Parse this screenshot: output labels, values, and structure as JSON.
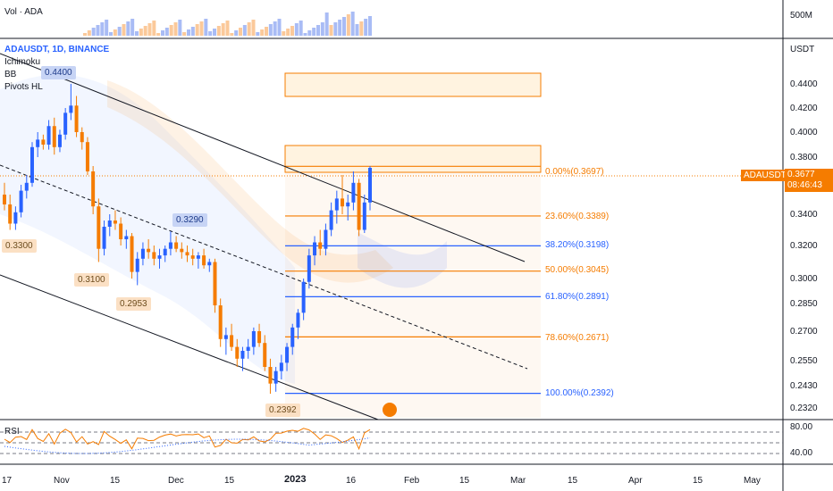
{
  "header": {
    "symbol_line": "ADAUSDT, 1D, BINANCE",
    "vol_label": "Vol · ADA",
    "indicators": [
      "Ichimoku",
      "BB",
      "Pivots HL"
    ],
    "rsi_label": "RSI",
    "currency": "USDT",
    "vol_scale": "500M"
  },
  "price_tag": {
    "symbol": "ADAUSDT",
    "price": "0.3677",
    "time": "08:46:43"
  },
  "colors": {
    "up": "#2962ff",
    "down": "#f57c00",
    "fib_orange": "#f57c00",
    "fib_blue": "#2962ff"
  },
  "chart_data": {
    "type": "candlestick",
    "y_ticks": [
      "0.4400",
      "0.4200",
      "0.4000",
      "0.3800",
      "0.3600",
      "0.3400",
      "0.3200",
      "0.3000",
      "0.2850",
      "0.2700",
      "0.2550",
      "0.2430",
      "0.2320"
    ],
    "x_ticks": [
      "17",
      "Nov",
      "15",
      "Dec",
      "15",
      "2023",
      "16",
      "Feb",
      "15",
      "Mar",
      "15",
      "Apr",
      "15",
      "May"
    ],
    "rsi_ticks": [
      "80.00",
      "40.00"
    ],
    "pivots": [
      {
        "label": "0.4400",
        "kind": "high"
      },
      {
        "label": "0.3300",
        "kind": "low"
      },
      {
        "label": "0.3100",
        "kind": "low"
      },
      {
        "label": "0.2953",
        "kind": "low"
      },
      {
        "label": "0.3290",
        "kind": "high"
      },
      {
        "label": "0.2392",
        "kind": "low"
      }
    ],
    "fib_levels": [
      {
        "label": "0.00%(0.3697)",
        "price": 0.3697,
        "color": "orange"
      },
      {
        "label": "23.60%(0.3389)",
        "price": 0.3389,
        "color": "orange"
      },
      {
        "label": "38.20%(0.3198)",
        "price": 0.3198,
        "color": "blue"
      },
      {
        "label": "50.00%(0.3045)",
        "price": 0.3045,
        "color": "orange"
      },
      {
        "label": "61.80%(0.2891)",
        "price": 0.2891,
        "color": "blue"
      },
      {
        "label": "78.60%(0.2671)",
        "price": 0.2671,
        "color": "orange"
      },
      {
        "label": "100.00%(0.2392)",
        "price": 0.2392,
        "color": "blue"
      }
    ],
    "candles": [
      [
        0.35,
        0.356,
        0.342,
        0.345
      ],
      [
        0.345,
        0.35,
        0.33,
        0.334
      ],
      [
        0.334,
        0.344,
        0.33,
        0.341
      ],
      [
        0.341,
        0.355,
        0.338,
        0.352
      ],
      [
        0.352,
        0.36,
        0.348,
        0.356
      ],
      [
        0.356,
        0.392,
        0.354,
        0.388
      ],
      [
        0.388,
        0.4,
        0.38,
        0.394
      ],
      [
        0.394,
        0.398,
        0.386,
        0.39
      ],
      [
        0.39,
        0.41,
        0.386,
        0.405
      ],
      [
        0.405,
        0.412,
        0.382,
        0.388
      ],
      [
        0.388,
        0.402,
        0.384,
        0.398
      ],
      [
        0.398,
        0.42,
        0.394,
        0.416
      ],
      [
        0.416,
        0.44,
        0.41,
        0.422
      ],
      [
        0.422,
        0.43,
        0.396,
        0.4
      ],
      [
        0.4,
        0.404,
        0.386,
        0.392
      ],
      [
        0.392,
        0.396,
        0.36,
        0.364
      ],
      [
        0.364,
        0.37,
        0.34,
        0.344
      ],
      [
        0.344,
        0.348,
        0.31,
        0.318
      ],
      [
        0.318,
        0.336,
        0.314,
        0.332
      ],
      [
        0.332,
        0.34,
        0.326,
        0.336
      ],
      [
        0.336,
        0.342,
        0.33,
        0.334
      ],
      [
        0.334,
        0.338,
        0.32,
        0.324
      ],
      [
        0.324,
        0.33,
        0.318,
        0.326
      ],
      [
        0.326,
        0.328,
        0.3,
        0.304
      ],
      [
        0.304,
        0.316,
        0.296,
        0.312
      ],
      [
        0.312,
        0.322,
        0.308,
        0.318
      ],
      [
        0.318,
        0.324,
        0.312,
        0.316
      ],
      [
        0.316,
        0.32,
        0.308,
        0.312
      ],
      [
        0.312,
        0.318,
        0.306,
        0.314
      ],
      [
        0.314,
        0.32,
        0.31,
        0.318
      ],
      [
        0.318,
        0.329,
        0.314,
        0.322
      ],
      [
        0.322,
        0.326,
        0.316,
        0.318
      ],
      [
        0.318,
        0.322,
        0.312,
        0.316
      ],
      [
        0.316,
        0.32,
        0.31,
        0.314
      ],
      [
        0.314,
        0.318,
        0.308,
        0.312
      ],
      [
        0.312,
        0.316,
        0.306,
        0.314
      ],
      [
        0.314,
        0.318,
        0.306,
        0.308
      ],
      [
        0.308,
        0.312,
        0.304,
        0.31
      ],
      [
        0.31,
        0.312,
        0.28,
        0.284
      ],
      [
        0.284,
        0.288,
        0.262,
        0.266
      ],
      [
        0.266,
        0.272,
        0.258,
        0.268
      ],
      [
        0.268,
        0.274,
        0.26,
        0.262
      ],
      [
        0.262,
        0.266,
        0.252,
        0.256
      ],
      [
        0.256,
        0.262,
        0.25,
        0.26
      ],
      [
        0.26,
        0.266,
        0.256,
        0.262
      ],
      [
        0.262,
        0.272,
        0.258,
        0.27
      ],
      [
        0.27,
        0.274,
        0.262,
        0.264
      ],
      [
        0.264,
        0.268,
        0.25,
        0.252
      ],
      [
        0.252,
        0.256,
        0.239,
        0.244
      ],
      [
        0.244,
        0.252,
        0.24,
        0.25
      ],
      [
        0.25,
        0.258,
        0.246,
        0.254
      ],
      [
        0.254,
        0.264,
        0.25,
        0.262
      ],
      [
        0.262,
        0.274,
        0.258,
        0.272
      ],
      [
        0.272,
        0.282,
        0.266,
        0.28
      ],
      [
        0.28,
        0.3,
        0.276,
        0.298
      ],
      [
        0.298,
        0.318,
        0.294,
        0.314
      ],
      [
        0.314,
        0.326,
        0.308,
        0.322
      ],
      [
        0.322,
        0.33,
        0.314,
        0.318
      ],
      [
        0.318,
        0.334,
        0.314,
        0.33
      ],
      [
        0.33,
        0.346,
        0.326,
        0.342
      ],
      [
        0.342,
        0.352,
        0.334,
        0.348
      ],
      [
        0.348,
        0.36,
        0.34,
        0.344
      ],
      [
        0.344,
        0.35,
        0.336,
        0.346
      ],
      [
        0.346,
        0.364,
        0.342,
        0.356
      ],
      [
        0.356,
        0.358,
        0.326,
        0.33
      ],
      [
        0.33,
        0.35,
        0.328,
        0.346
      ],
      [
        0.346,
        0.37,
        0.342,
        0.368
      ]
    ]
  }
}
